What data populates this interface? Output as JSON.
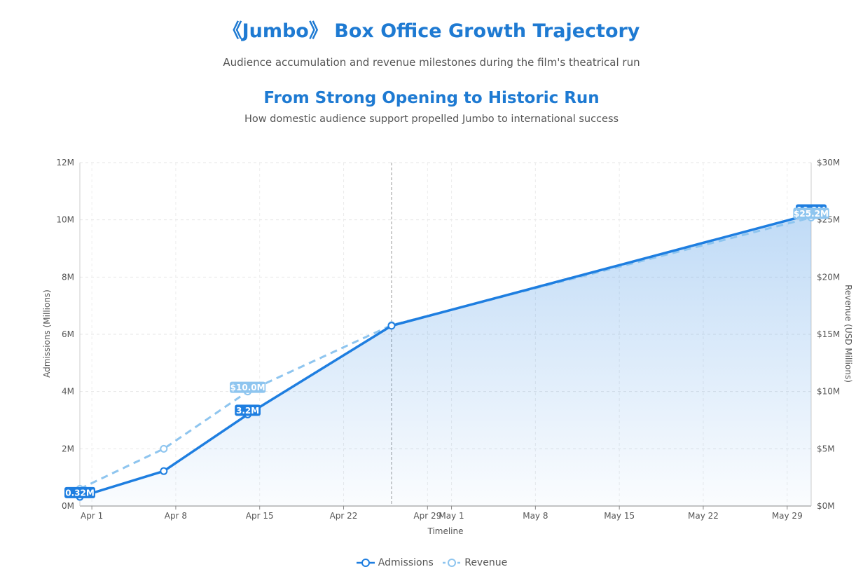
{
  "header": {
    "title": "《Jumbo》 Box Office Growth Trajectory",
    "subtitle": "Audience accumulation and revenue milestones during the film's theatrical run"
  },
  "chart_data": {
    "type": "line",
    "title": "From Strong Opening to Historic Run",
    "subtitle": "How domestic audience support propelled Jumbo to international success",
    "xlabel": "Timeline",
    "ylabel": "Admissions (Millions)",
    "y2label": "Revenue (USD Millions)",
    "x_ticks": [
      "Apr 1",
      "Apr 8",
      "Apr 15",
      "Apr 22",
      "Apr 29",
      "May 1",
      "May 8",
      "May 15",
      "May 22",
      "May 29"
    ],
    "x_range": [
      "2025-03-31",
      "2025-05-31"
    ],
    "ylim": [
      0,
      12
    ],
    "y_ticks": [
      "0M",
      "2M",
      "4M",
      "6M",
      "8M",
      "10M",
      "12M"
    ],
    "y2lim": [
      0,
      30
    ],
    "y2_ticks": [
      "$0M",
      "$5M",
      "$10M",
      "$15M",
      "$20M",
      "$25M",
      "$30M"
    ],
    "grid": true,
    "legend_position": "bottom",
    "series": [
      {
        "name": "Admissions",
        "axis": "left",
        "color": "#1e7ee0",
        "style": "solid",
        "area": true,
        "x": [
          "2025-03-31",
          "2025-04-07",
          "2025-04-14",
          "2025-04-26",
          "2025-05-31"
        ],
        "values": [
          0.32,
          1.22,
          3.2,
          6.3,
          10.2
        ],
        "labels": [
          "0.32M",
          "",
          "3.2M",
          "",
          "10.2M"
        ]
      },
      {
        "name": "Revenue",
        "axis": "right",
        "color": "#8ec5ef",
        "style": "dashed",
        "area": false,
        "x": [
          "2025-03-31",
          "2025-04-07",
          "2025-04-14",
          "2025-04-26",
          "2025-05-31"
        ],
        "values": [
          1.5,
          5.0,
          10.0,
          15.8,
          25.2
        ],
        "labels": [
          "",
          "",
          "$10.0M",
          "",
          "$25.2M"
        ]
      }
    ],
    "crosshair_date": "2025-04-26"
  }
}
